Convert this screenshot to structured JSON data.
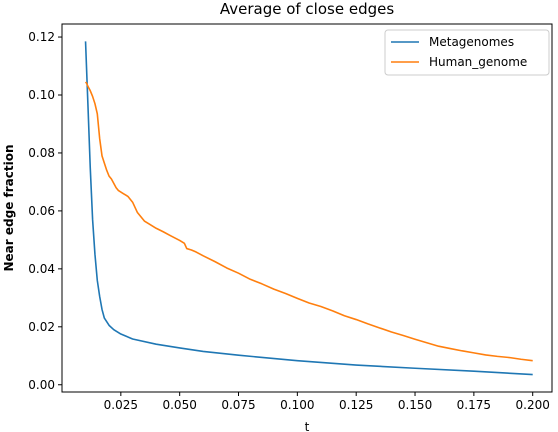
{
  "chart_data": {
    "type": "line",
    "title": "Average of close edges",
    "xlabel": "t",
    "ylabel": "Near edge fraction",
    "xlim": [
      -0.0,
      0.2082
    ],
    "ylim": [
      -0.0025,
      0.1245
    ],
    "xticks": [
      0.025,
      0.05,
      0.075,
      0.1,
      0.125,
      0.15,
      0.175,
      0.2
    ],
    "xtick_labels": [
      "0.025",
      "0.050",
      "0.075",
      "0.100",
      "0.125",
      "0.150",
      "0.175",
      "0.200"
    ],
    "yticks": [
      0.0,
      0.02,
      0.04,
      0.06,
      0.08,
      0.1,
      0.12
    ],
    "ytick_labels": [
      "0.00",
      "0.02",
      "0.04",
      "0.06",
      "0.08",
      "0.10",
      "0.12"
    ],
    "grid": false,
    "legend_position": "top-right",
    "series": [
      {
        "name": "Metagenomes",
        "color": "#1f77b4",
        "points": [
          [
            0.01,
            0.1185
          ],
          [
            0.011,
            0.097
          ],
          [
            0.012,
            0.075
          ],
          [
            0.013,
            0.057
          ],
          [
            0.014,
            0.045
          ],
          [
            0.015,
            0.036
          ],
          [
            0.016,
            0.0305
          ],
          [
            0.017,
            0.026
          ],
          [
            0.018,
            0.023
          ],
          [
            0.02,
            0.0205
          ],
          [
            0.022,
            0.019
          ],
          [
            0.025,
            0.0175
          ],
          [
            0.03,
            0.0158
          ],
          [
            0.04,
            0.014
          ],
          [
            0.05,
            0.0127
          ],
          [
            0.06,
            0.0115
          ],
          [
            0.075,
            0.0102
          ],
          [
            0.1,
            0.0083
          ],
          [
            0.125,
            0.0068
          ],
          [
            0.15,
            0.0057
          ],
          [
            0.175,
            0.0047
          ],
          [
            0.2,
            0.0035
          ]
        ]
      },
      {
        "name": "Human_genome",
        "color": "#ff7f0e",
        "points": [
          [
            0.01,
            0.1045
          ],
          [
            0.0105,
            0.104
          ],
          [
            0.011,
            0.103
          ],
          [
            0.012,
            0.1015
          ],
          [
            0.013,
            0.0995
          ],
          [
            0.014,
            0.097
          ],
          [
            0.015,
            0.0935
          ],
          [
            0.016,
            0.085
          ],
          [
            0.017,
            0.079
          ],
          [
            0.018,
            0.0765
          ],
          [
            0.019,
            0.074
          ],
          [
            0.02,
            0.072
          ],
          [
            0.021,
            0.071
          ],
          [
            0.022,
            0.0695
          ],
          [
            0.023,
            0.068
          ],
          [
            0.024,
            0.067
          ],
          [
            0.025,
            0.0665
          ],
          [
            0.026,
            0.066
          ],
          [
            0.027,
            0.0655
          ],
          [
            0.028,
            0.065
          ],
          [
            0.03,
            0.063
          ],
          [
            0.032,
            0.0595
          ],
          [
            0.035,
            0.0565
          ],
          [
            0.037,
            0.0555
          ],
          [
            0.04,
            0.054
          ],
          [
            0.043,
            0.0528
          ],
          [
            0.046,
            0.0515
          ],
          [
            0.05,
            0.0498
          ],
          [
            0.052,
            0.0488
          ],
          [
            0.053,
            0.047
          ],
          [
            0.055,
            0.0465
          ],
          [
            0.057,
            0.0458
          ],
          [
            0.06,
            0.0445
          ],
          [
            0.065,
            0.0425
          ],
          [
            0.07,
            0.0403
          ],
          [
            0.075,
            0.0385
          ],
          [
            0.08,
            0.0364
          ],
          [
            0.085,
            0.0348
          ],
          [
            0.09,
            0.033
          ],
          [
            0.095,
            0.0315
          ],
          [
            0.1,
            0.0298
          ],
          [
            0.105,
            0.0282
          ],
          [
            0.11,
            0.027
          ],
          [
            0.115,
            0.0255
          ],
          [
            0.12,
            0.0238
          ],
          [
            0.125,
            0.0225
          ],
          [
            0.13,
            0.021
          ],
          [
            0.135,
            0.0196
          ],
          [
            0.14,
            0.0182
          ],
          [
            0.145,
            0.017
          ],
          [
            0.15,
            0.0157
          ],
          [
            0.155,
            0.0145
          ],
          [
            0.16,
            0.0133
          ],
          [
            0.165,
            0.0125
          ],
          [
            0.17,
            0.0117
          ],
          [
            0.175,
            0.011
          ],
          [
            0.18,
            0.0103
          ],
          [
            0.185,
            0.0098
          ],
          [
            0.19,
            0.0094
          ],
          [
            0.195,
            0.0088
          ],
          [
            0.2,
            0.0083
          ]
        ]
      }
    ]
  }
}
